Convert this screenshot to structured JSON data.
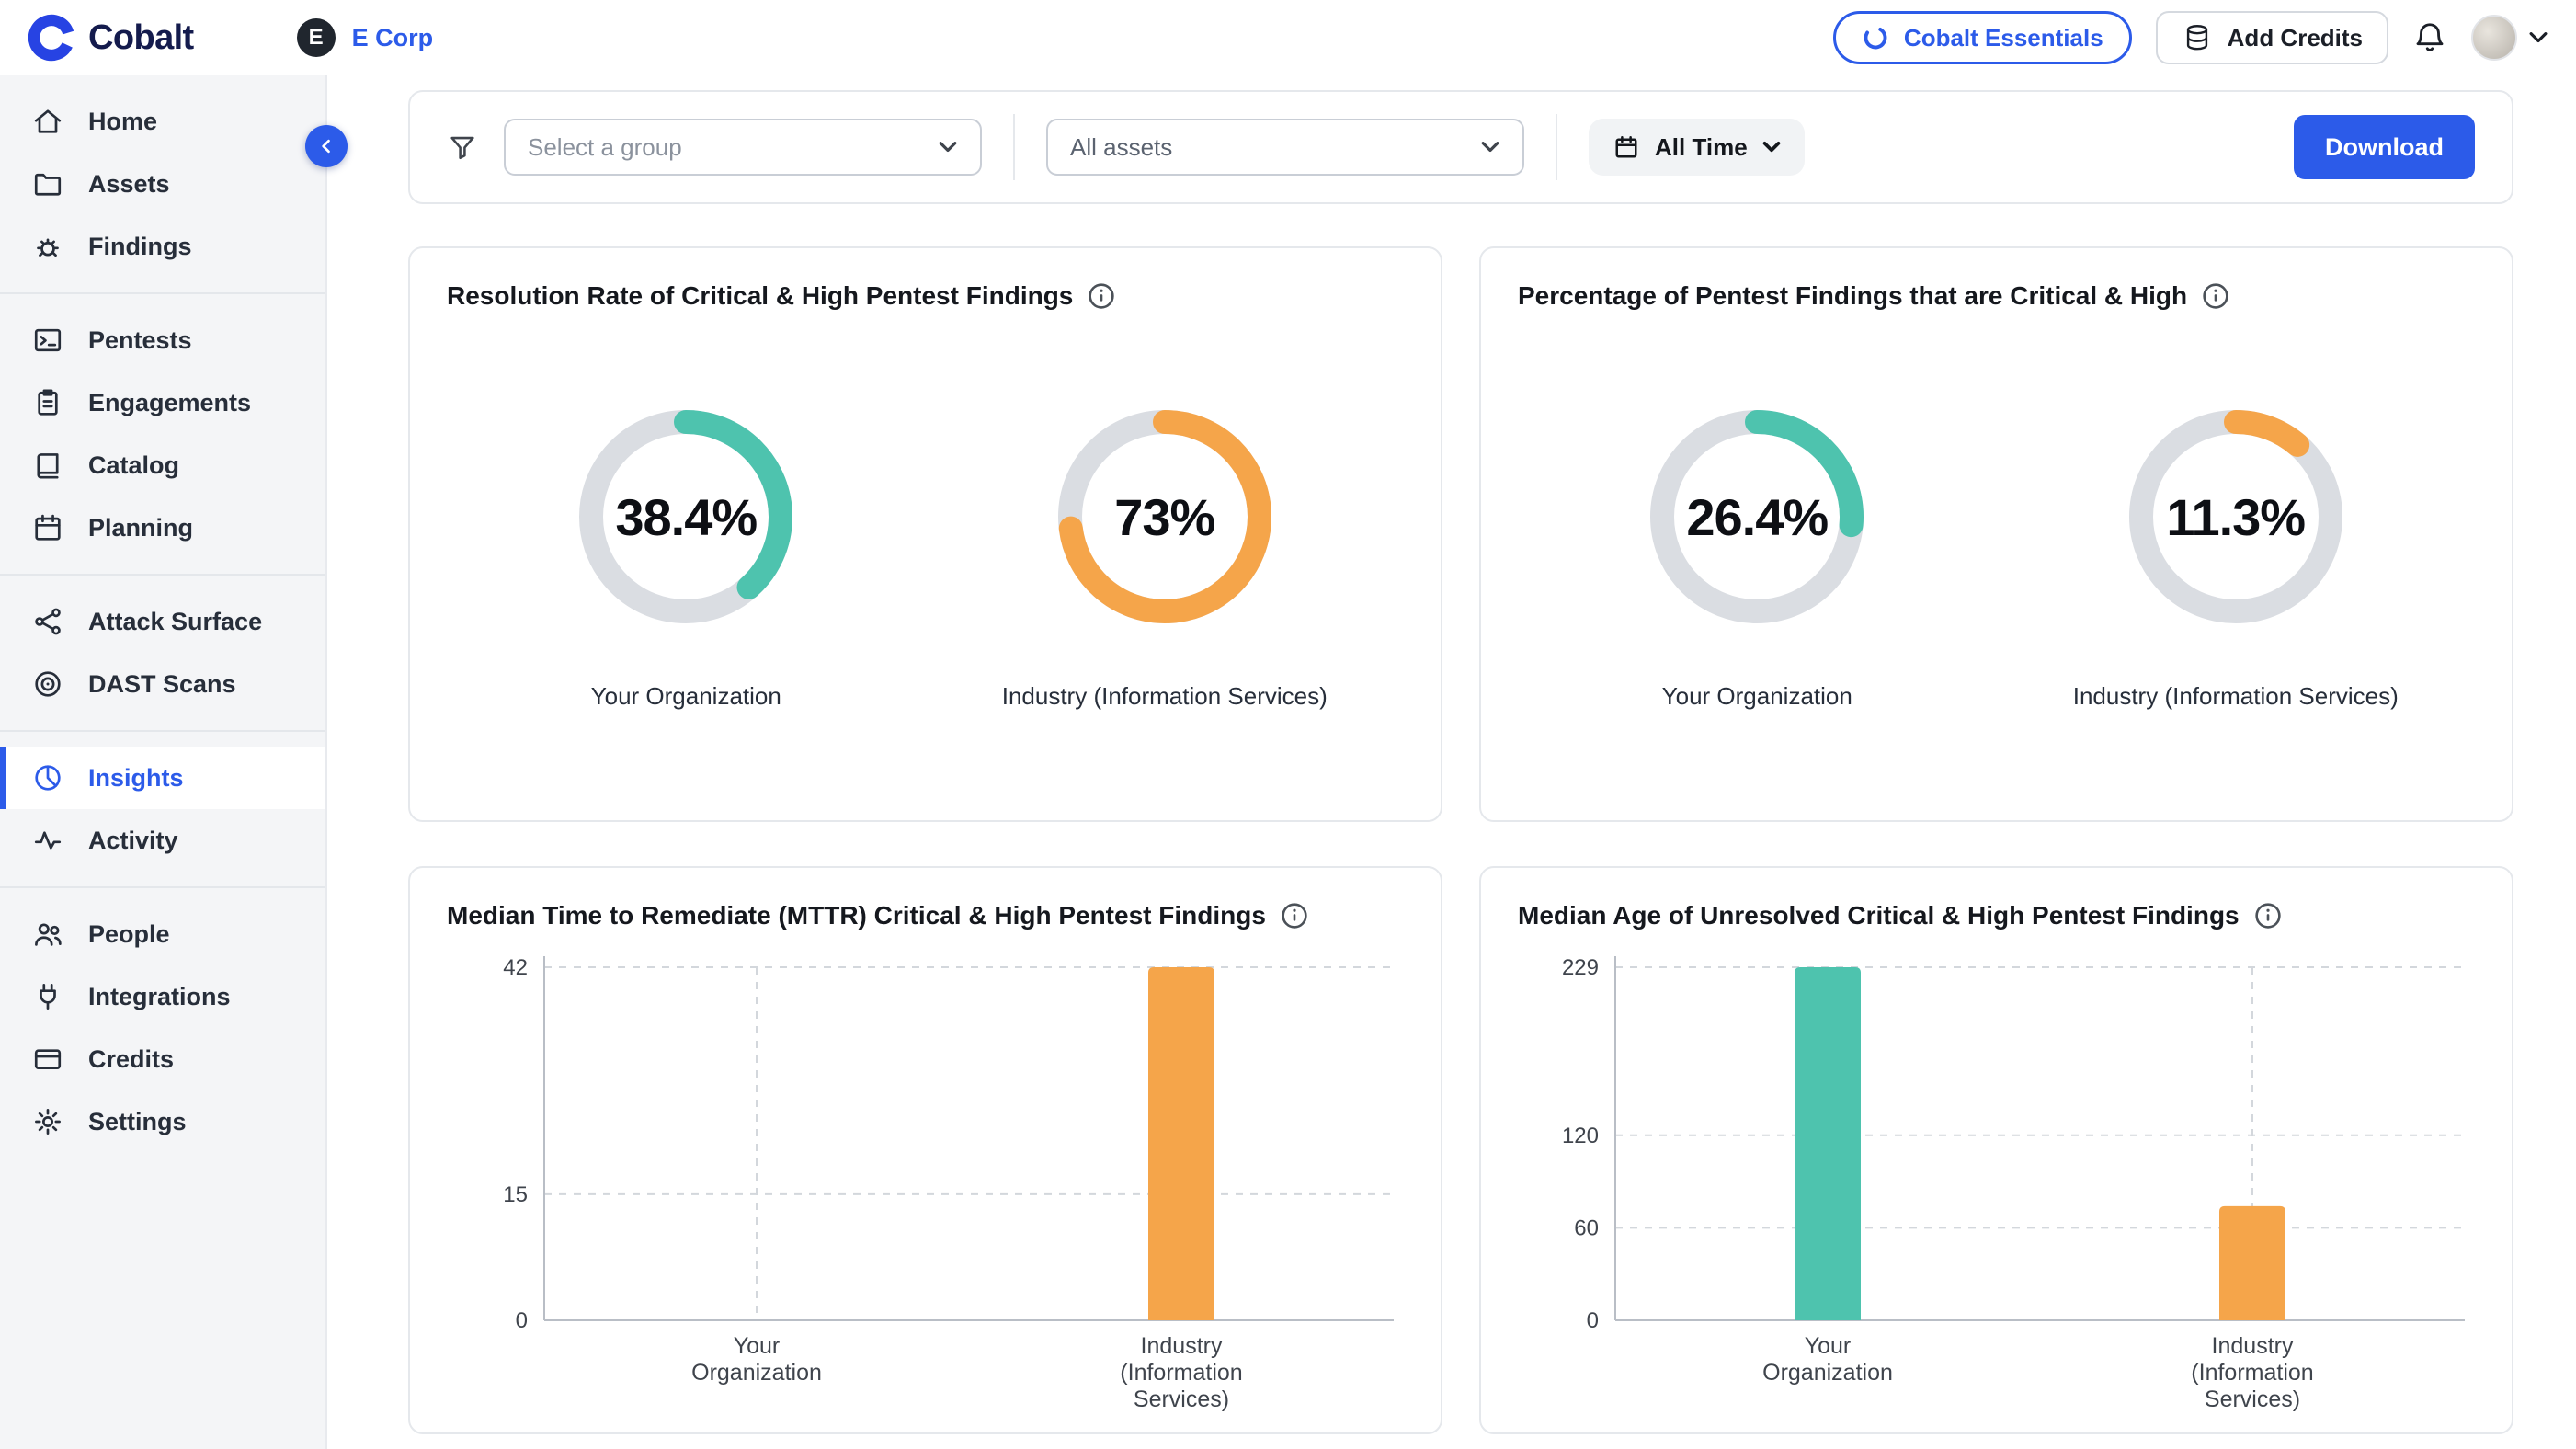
{
  "theme": {
    "accent_blue": "#2C5BE9",
    "brand_navy": "#141B4D",
    "logo_blue": "#2743E3",
    "teal": "#4EC3AE",
    "orange": "#F5A54A",
    "donut_track": "#DADDE2",
    "sidebar_bg": "#F4F5F7"
  },
  "header": {
    "brand": "Cobalt",
    "org_initial": "E",
    "org_name": "E Corp",
    "essentials_button": "Cobalt Essentials",
    "add_credits_button": "Add Credits"
  },
  "filters": {
    "group_placeholder": "Select a group",
    "assets_placeholder": "All assets",
    "time_filter": "All Time",
    "download_button": "Download"
  },
  "sidebar": {
    "items": [
      {
        "label": "Home"
      },
      {
        "label": "Assets"
      },
      {
        "label": "Findings"
      },
      {
        "label": "Pentests"
      },
      {
        "label": "Engagements"
      },
      {
        "label": "Catalog"
      },
      {
        "label": "Planning"
      },
      {
        "label": "Attack Surface"
      },
      {
        "label": "DAST Scans"
      },
      {
        "label": "Insights",
        "active": true
      },
      {
        "label": "Activity"
      },
      {
        "label": "People"
      },
      {
        "label": "Integrations"
      },
      {
        "label": "Credits"
      },
      {
        "label": "Settings"
      }
    ]
  },
  "chart_data": [
    {
      "type": "donut",
      "title": "Resolution Rate of Critical & High Pentest Findings",
      "values": [
        {
          "label": "Your Organization",
          "pct": 38.4,
          "pct_label": "38.4%",
          "color": "#4EC3AE"
        },
        {
          "label": "Industry (Information Services)",
          "pct": 73,
          "pct_label": "73%",
          "color": "#F5A54A"
        }
      ]
    },
    {
      "type": "donut",
      "title": "Percentage of Pentest Findings that are Critical & High",
      "values": [
        {
          "label": "Your Organization",
          "pct": 26.4,
          "pct_label": "26.4%",
          "color": "#4EC3AE"
        },
        {
          "label": "Industry (Information Services)",
          "pct": 11.3,
          "pct_label": "11.3%",
          "color": "#F5A54A"
        }
      ]
    },
    {
      "type": "bar",
      "title": "Median Time to Remediate (MTTR) Critical & High Pentest Findings",
      "categories": [
        "Your Organization",
        "Industry (Information Services)"
      ],
      "category_lines": [
        [
          "Your",
          "Organization"
        ],
        [
          "Industry",
          "(Information",
          "Services)"
        ]
      ],
      "values": [
        0,
        42
      ],
      "colors": [
        "#4EC3AE",
        "#F5A54A"
      ],
      "yticks": [
        0,
        15,
        42
      ],
      "ymax": 42,
      "grid": true,
      "legend": "none"
    },
    {
      "type": "bar",
      "title": "Median Age of Unresolved Critical & High Pentest Findings",
      "categories": [
        "Your Organization",
        "Industry (Information Services)"
      ],
      "category_lines": [
        [
          "Your",
          "Organization"
        ],
        [
          "Industry",
          "(Information",
          "Services)"
        ]
      ],
      "values": [
        229,
        74
      ],
      "colors": [
        "#4EC3AE",
        "#F5A54A"
      ],
      "yticks": [
        0,
        60,
        120,
        229
      ],
      "ymax": 229,
      "grid": true,
      "legend": "none"
    }
  ]
}
